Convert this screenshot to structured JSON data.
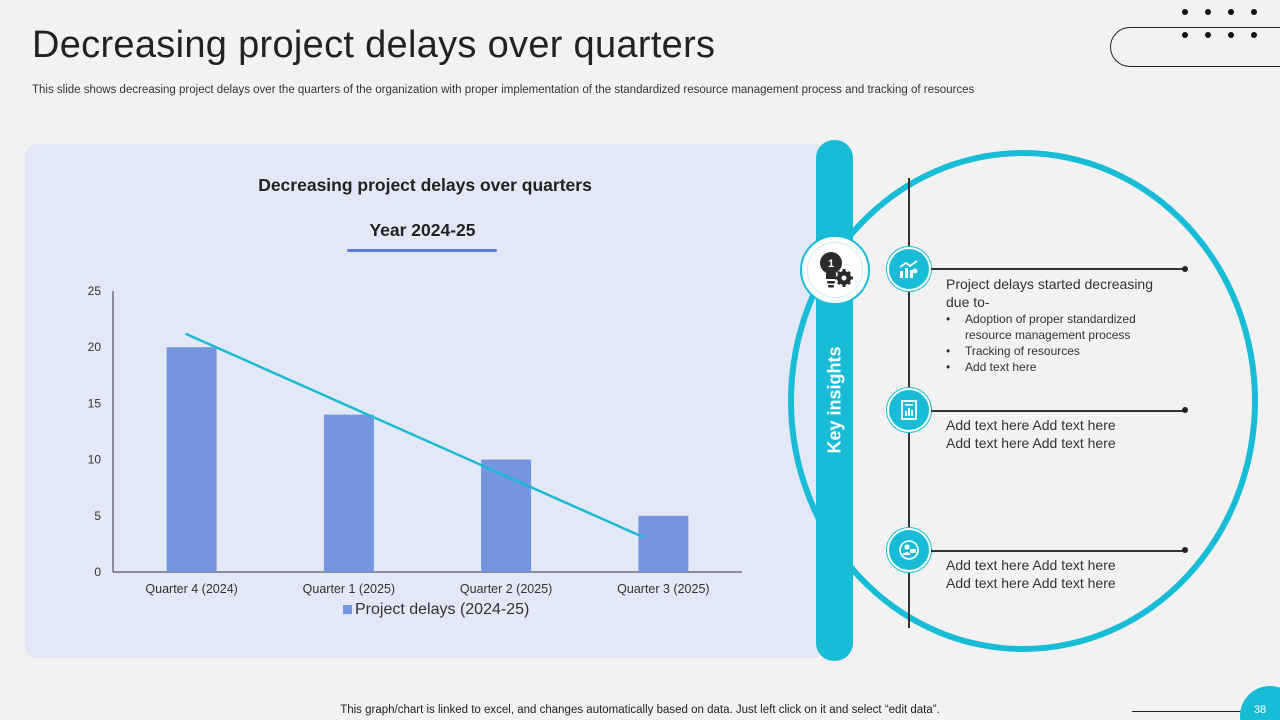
{
  "header": {
    "title": "Decreasing project delays over quarters",
    "subtitle": "This slide shows decreasing project delays over the quarters of the organization with proper implementation of the standardized resource management process and tracking of resources"
  },
  "chart_data": {
    "type": "bar",
    "title": "Decreasing project delays over quarters",
    "subtitle": "Year 2024-25",
    "categories": [
      "Quarter 4 (2024)",
      "Quarter 1 (2025)",
      "Quarter 2 (2025)",
      "Quarter 3 (2025)"
    ],
    "series": [
      {
        "name": "Project delays (2024-25)",
        "values": [
          20,
          14,
          10,
          5
        ]
      }
    ],
    "trendline": {
      "type": "linear",
      "start": 21.2,
      "end": 3.1
    },
    "ylim": [
      0,
      25
    ],
    "yticks": [
      0,
      5,
      10,
      15,
      20,
      25
    ],
    "xlabel": "",
    "ylabel": "",
    "legend": "bottom",
    "colors": {
      "bar": "#7595e0",
      "trend": "#1bbad4"
    }
  },
  "insights": {
    "label": "Key insights",
    "items": [
      {
        "icon": "growth-chart-icon",
        "text": "Project delays started decreasing due to-",
        "bullets": [
          "Adoption of proper standardized resource management process",
          "Tracking of resources",
          "Add text here"
        ]
      },
      {
        "icon": "report-icon",
        "line1": "Add text here Add text here",
        "line2": "Add text here Add text here"
      },
      {
        "icon": "user-presentation-icon",
        "line1": "Add text here Add text here",
        "line2": "Add text here Add text here"
      }
    ]
  },
  "footer": {
    "note": "This graph/chart is linked to excel, and changes automatically based on data. Just left click on it and select “edit data”.",
    "page_number": "38"
  },
  "theme": {
    "accent": "#18bcd7",
    "panel": "#e3e8f7",
    "background": "#f2f2f2"
  }
}
